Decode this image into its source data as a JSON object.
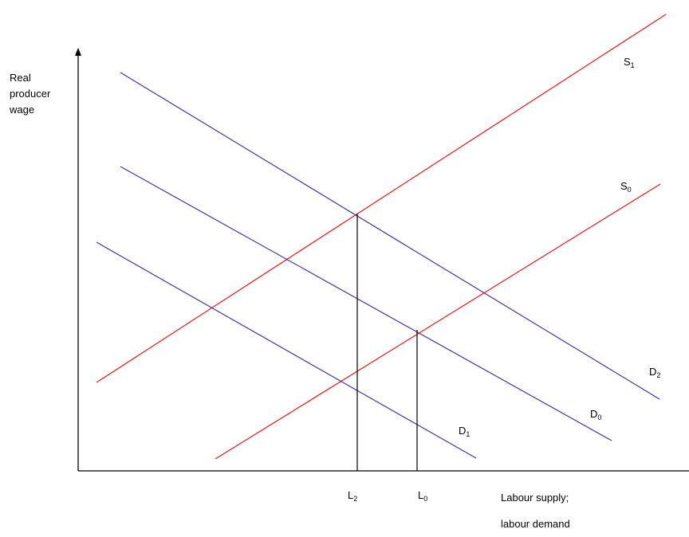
{
  "axes": {
    "y_label_lines": [
      "Real",
      "producer",
      "wage"
    ],
    "x_label_lines": [
      "Labour supply;",
      "labour demand"
    ]
  },
  "colors": {
    "supply": "#e8191c",
    "demand": "#3a3aa0",
    "axis": "#000000"
  },
  "curves": {
    "S1": {
      "letter": "S",
      "sub": "1"
    },
    "S0": {
      "letter": "S",
      "sub": "0"
    },
    "D2": {
      "letter": "D",
      "sub": "2"
    },
    "D0": {
      "letter": "D",
      "sub": "0"
    },
    "D1": {
      "letter": "D",
      "sub": "1"
    }
  },
  "ticks": {
    "L2": {
      "letter": "L",
      "sub": "2"
    },
    "L0": {
      "letter": "L",
      "sub": "0"
    }
  }
}
